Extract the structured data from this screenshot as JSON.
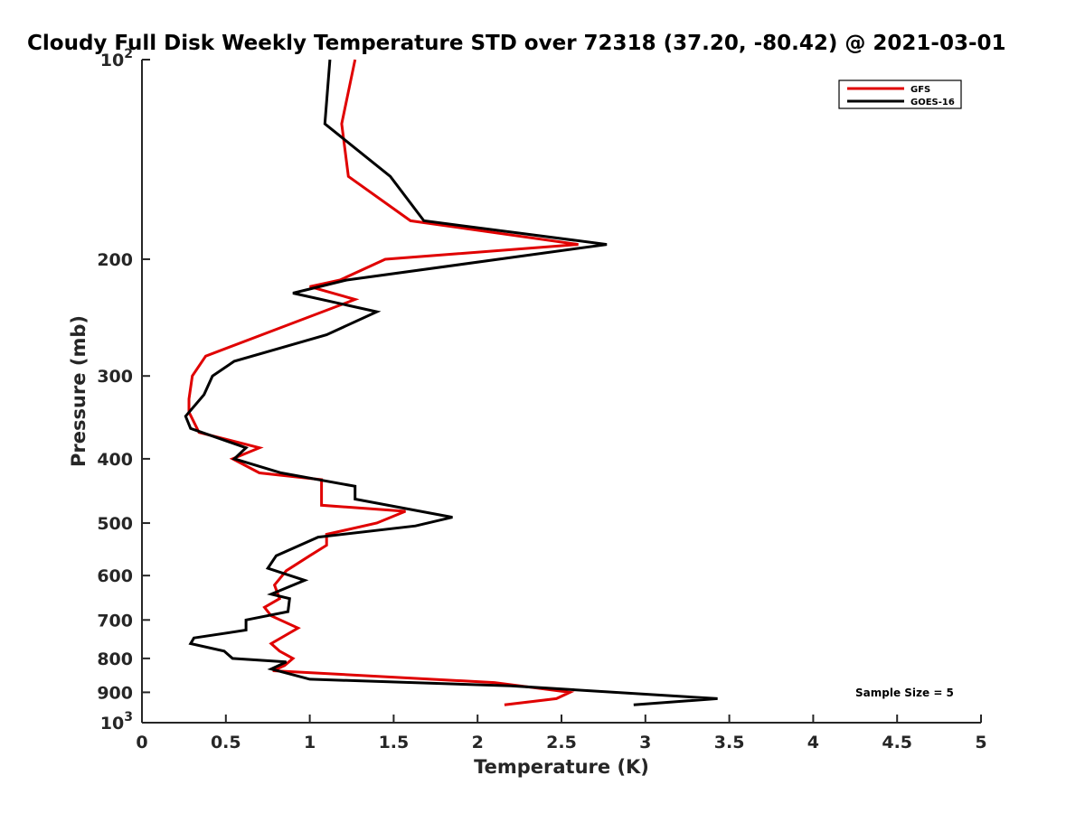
{
  "chart_data": {
    "type": "line",
    "title": "Cloudy Full Disk Weekly Temperature STD over 72318 (37.20, -80.42) @ 2021-03-01",
    "xlabel": "Temperature (K)",
    "ylabel": "Pressure (mb)",
    "xlim": [
      0,
      5
    ],
    "ylim": [
      100,
      1000
    ],
    "yscale": "log",
    "y_reversed": true,
    "xticks": [
      "0",
      "0.5",
      "1",
      "1.5",
      "2",
      "2.5",
      "3",
      "3.5",
      "4",
      "4.5",
      "5"
    ],
    "yticks": [
      {
        "value": 100,
        "base": "10",
        "exp": "2"
      },
      {
        "value": 200,
        "label": "200"
      },
      {
        "value": 300,
        "label": "300"
      },
      {
        "value": 400,
        "label": "400"
      },
      {
        "value": 500,
        "label": "500"
      },
      {
        "value": 600,
        "label": "600"
      },
      {
        "value": 700,
        "label": "700"
      },
      {
        "value": 800,
        "label": "800"
      },
      {
        "value": 900,
        "label": "900"
      },
      {
        "value": 1000,
        "base": "10",
        "exp": "3"
      }
    ],
    "legend": {
      "position": "top-right",
      "entries": [
        "GFS",
        "GOES-16"
      ]
    },
    "annotation": "Sample Size = 5",
    "series": [
      {
        "name": "GFS",
        "color": "#e00000",
        "points": [
          [
            1.27,
            100
          ],
          [
            1.19,
            125
          ],
          [
            1.23,
            150
          ],
          [
            1.6,
            175
          ],
          [
            2.6,
            190
          ],
          [
            1.45,
            200
          ],
          [
            1.18,
            215
          ],
          [
            1.0,
            220
          ],
          [
            1.27,
            230
          ],
          [
            0.38,
            280
          ],
          [
            0.3,
            300
          ],
          [
            0.28,
            325
          ],
          [
            0.28,
            340
          ],
          [
            0.34,
            365
          ],
          [
            0.7,
            385
          ],
          [
            0.54,
            400
          ],
          [
            0.7,
            420
          ],
          [
            1.07,
            430
          ],
          [
            1.07,
            470
          ],
          [
            1.57,
            480
          ],
          [
            1.4,
            500
          ],
          [
            1.1,
            520
          ],
          [
            1.1,
            540
          ],
          [
            1.0,
            560
          ],
          [
            0.86,
            590
          ],
          [
            0.79,
            620
          ],
          [
            0.82,
            650
          ],
          [
            0.73,
            670
          ],
          [
            0.77,
            690
          ],
          [
            0.93,
            720
          ],
          [
            0.77,
            760
          ],
          [
            0.82,
            780
          ],
          [
            0.9,
            800
          ],
          [
            0.85,
            820
          ],
          [
            0.78,
            835
          ],
          [
            2.1,
            870
          ],
          [
            2.55,
            900
          ],
          [
            2.47,
            920
          ],
          [
            2.16,
            940
          ]
        ]
      },
      {
        "name": "GOES-16",
        "color": "#000000",
        "points": [
          [
            1.12,
            100
          ],
          [
            1.09,
            125
          ],
          [
            1.48,
            150
          ],
          [
            1.68,
            175
          ],
          [
            2.77,
            190
          ],
          [
            1.22,
            215
          ],
          [
            0.9,
            225
          ],
          [
            1.4,
            240
          ],
          [
            1.1,
            260
          ],
          [
            0.55,
            285
          ],
          [
            0.42,
            300
          ],
          [
            0.37,
            320
          ],
          [
            0.26,
            345
          ],
          [
            0.29,
            360
          ],
          [
            0.62,
            385
          ],
          [
            0.55,
            400
          ],
          [
            0.83,
            420
          ],
          [
            1.27,
            440
          ],
          [
            1.27,
            460
          ],
          [
            1.85,
            490
          ],
          [
            1.63,
            505
          ],
          [
            1.05,
            525
          ],
          [
            0.8,
            560
          ],
          [
            0.75,
            585
          ],
          [
            0.97,
            610
          ],
          [
            0.77,
            640
          ],
          [
            0.88,
            650
          ],
          [
            0.87,
            680
          ],
          [
            0.62,
            700
          ],
          [
            0.62,
            725
          ],
          [
            0.31,
            745
          ],
          [
            0.29,
            760
          ],
          [
            0.49,
            780
          ],
          [
            0.54,
            800
          ],
          [
            0.86,
            810
          ],
          [
            0.77,
            830
          ],
          [
            1.0,
            860
          ],
          [
            2.2,
            880
          ],
          [
            3.43,
            920
          ],
          [
            2.93,
            940
          ]
        ]
      }
    ]
  }
}
